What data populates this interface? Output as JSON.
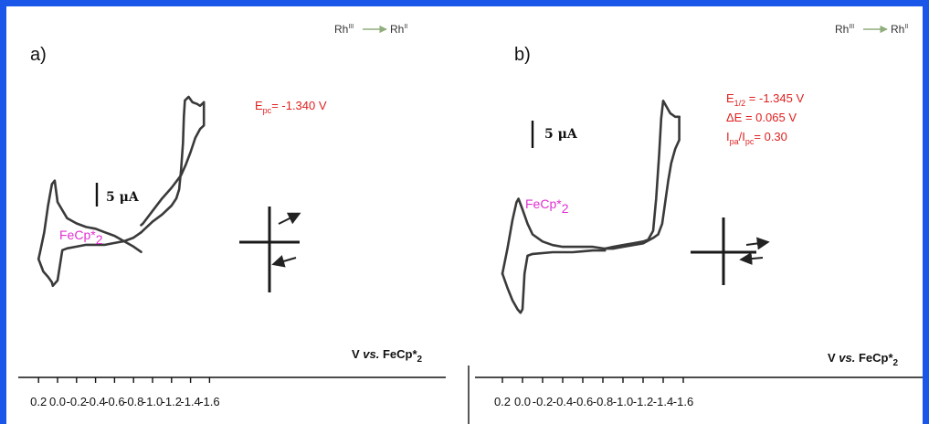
{
  "chart_data": [
    {
      "type": "line",
      "panel": "a)",
      "top_label": {
        "from": "Rh",
        "from_sup": "III",
        "to": "Rh",
        "to_sup": "II"
      },
      "annotations": [
        {
          "name": "epc",
          "base": "E",
          "sub": "pc",
          "rest": "= -1.340 V"
        }
      ],
      "reference_label": {
        "base": "FeCp*",
        "sub": "2"
      },
      "scale_bar": "5 μA",
      "xlabel": {
        "prefix": "V ",
        "italic": "vs.",
        "mid": " FeCp*",
        "sub": "2"
      },
      "xticks": [
        "0.2",
        "0.0",
        "-0.2",
        "-0.4",
        "-0.6",
        "-0.8",
        "-1.0",
        "-1.2",
        "-1.4",
        "-1.6"
      ],
      "xlim": [
        0.2,
        -1.6
      ],
      "start_potential": -0.88,
      "forward_scan": [
        [
          -0.88,
          -0.06
        ],
        [
          -0.8,
          -0.03
        ],
        [
          -0.7,
          0.0
        ],
        [
          -0.6,
          0.03
        ],
        [
          -0.5,
          0.05
        ],
        [
          -0.4,
          0.07
        ],
        [
          -0.3,
          0.08
        ],
        [
          -0.2,
          0.1
        ],
        [
          -0.1,
          0.13
        ],
        [
          0.0,
          0.22
        ],
        [
          0.03,
          0.34
        ],
        [
          0.06,
          0.32
        ],
        [
          0.1,
          0.2
        ],
        [
          0.14,
          0.05
        ],
        [
          0.18,
          -0.05
        ],
        [
          0.2,
          -0.1
        ]
      ],
      "reverse_scan": [
        [
          0.2,
          -0.1
        ],
        [
          0.15,
          -0.17
        ],
        [
          0.1,
          -0.2
        ],
        [
          0.06,
          -0.23
        ],
        [
          0.05,
          -0.25
        ],
        [
          0.0,
          -0.22
        ],
        [
          -0.05,
          -0.05
        ],
        [
          -0.1,
          -0.04
        ],
        [
          -0.2,
          -0.03
        ],
        [
          -0.3,
          -0.02
        ],
        [
          -0.4,
          -0.02
        ],
        [
          -0.5,
          -0.02
        ],
        [
          -0.6,
          -0.01
        ],
        [
          -0.7,
          0.0
        ],
        [
          -0.8,
          0.02
        ],
        [
          -0.88,
          0.05
        ]
      ],
      "cathodic_scan": [
        [
          -0.88,
          0.05
        ],
        [
          -0.92,
          0.07
        ],
        [
          -1.0,
          0.11
        ],
        [
          -1.1,
          0.15
        ],
        [
          -1.2,
          0.2
        ],
        [
          -1.25,
          0.24
        ],
        [
          -1.28,
          0.29
        ],
        [
          -1.3,
          0.4
        ],
        [
          -1.32,
          0.55
        ],
        [
          -1.33,
          0.7
        ],
        [
          -1.34,
          0.79
        ],
        [
          -1.38,
          0.81
        ],
        [
          -1.42,
          0.78
        ],
        [
          -1.47,
          0.77
        ],
        [
          -1.5,
          0.76
        ],
        [
          -1.54,
          0.78
        ]
      ],
      "anodic_return": [
        [
          -1.54,
          0.78
        ],
        [
          -1.54,
          0.65
        ],
        [
          -1.5,
          0.63
        ],
        [
          -1.45,
          0.58
        ],
        [
          -1.4,
          0.5
        ],
        [
          -1.35,
          0.43
        ],
        [
          -1.3,
          0.37
        ],
        [
          -1.2,
          0.3
        ],
        [
          -1.1,
          0.24
        ],
        [
          -1.0,
          0.17
        ],
        [
          -0.9,
          0.1
        ],
        [
          -0.88,
          0.09
        ]
      ]
    },
    {
      "type": "line",
      "panel": "b)",
      "top_label": {
        "from": "Rh",
        "from_sup": "III",
        "to": "Rh",
        "to_sup": "II"
      },
      "annotations": [
        {
          "name": "e-half",
          "base": "E",
          "sub": "1/2",
          "rest": "  = -1.345 V"
        },
        {
          "name": "delta-e",
          "base": "ΔE",
          "sub": "",
          "rest": "     = 0.065 V"
        },
        {
          "name": "ipa-ipc",
          "base": "I",
          "sub": "pa",
          "rest": "/I",
          "sub2": "pc",
          "rest2": "= 0.30"
        }
      ],
      "reference_label": {
        "base": "FeCp*",
        "sub": "2"
      },
      "scale_bar": "5 μA",
      "xlabel": {
        "prefix": "V ",
        "italic": "vs.",
        "mid": " FeCp*",
        "sub": "2"
      },
      "xticks": [
        "0.2",
        "0.0",
        "-0.2",
        "-0.4",
        "-0.6",
        "-0.8",
        "-1.0",
        "-1.2",
        "-1.4",
        "-1.6"
      ],
      "xlim": [
        0.2,
        -1.6
      ],
      "start_potential": -0.82,
      "forward_scan": [
        [
          -0.82,
          0.02
        ],
        [
          -0.7,
          0.03
        ],
        [
          -0.6,
          0.03
        ],
        [
          -0.5,
          0.03
        ],
        [
          -0.4,
          0.03
        ],
        [
          -0.3,
          0.04
        ],
        [
          -0.2,
          0.06
        ],
        [
          -0.1,
          0.1
        ],
        [
          -0.05,
          0.16
        ],
        [
          0.0,
          0.24
        ],
        [
          0.04,
          0.3
        ],
        [
          0.06,
          0.28
        ],
        [
          0.1,
          0.18
        ],
        [
          0.15,
          0.02
        ],
        [
          0.2,
          -0.12
        ]
      ],
      "reverse_scan": [
        [
          0.2,
          -0.12
        ],
        [
          0.15,
          -0.2
        ],
        [
          0.1,
          -0.27
        ],
        [
          0.05,
          -0.32
        ],
        [
          0.02,
          -0.34
        ],
        [
          0.0,
          -0.32
        ],
        [
          -0.02,
          -0.12
        ],
        [
          -0.05,
          -0.02
        ],
        [
          -0.1,
          -0.01
        ],
        [
          -0.3,
          0.0
        ],
        [
          -0.5,
          0.0
        ],
        [
          -0.7,
          0.01
        ],
        [
          -0.82,
          0.01
        ]
      ],
      "cathodic_scan": [
        [
          -0.82,
          0.02
        ],
        [
          -0.9,
          0.03
        ],
        [
          -1.0,
          0.04
        ],
        [
          -1.1,
          0.05
        ],
        [
          -1.2,
          0.06
        ],
        [
          -1.25,
          0.07
        ],
        [
          -1.3,
          0.12
        ],
        [
          -1.33,
          0.3
        ],
        [
          -1.36,
          0.55
        ],
        [
          -1.38,
          0.75
        ],
        [
          -1.4,
          0.85
        ],
        [
          -1.43,
          0.82
        ],
        [
          -1.47,
          0.78
        ],
        [
          -1.52,
          0.76
        ],
        [
          -1.56,
          0.76
        ]
      ],
      "anodic_return": [
        [
          -1.56,
          0.76
        ],
        [
          -1.56,
          0.63
        ],
        [
          -1.52,
          0.58
        ],
        [
          -1.48,
          0.5
        ],
        [
          -1.45,
          0.4
        ],
        [
          -1.42,
          0.28
        ],
        [
          -1.39,
          0.16
        ],
        [
          -1.35,
          0.1
        ],
        [
          -1.3,
          0.08
        ],
        [
          -1.2,
          0.05
        ],
        [
          -1.1,
          0.04
        ],
        [
          -1.0,
          0.03
        ],
        [
          -0.9,
          0.02
        ],
        [
          -0.82,
          0.02
        ]
      ]
    }
  ]
}
